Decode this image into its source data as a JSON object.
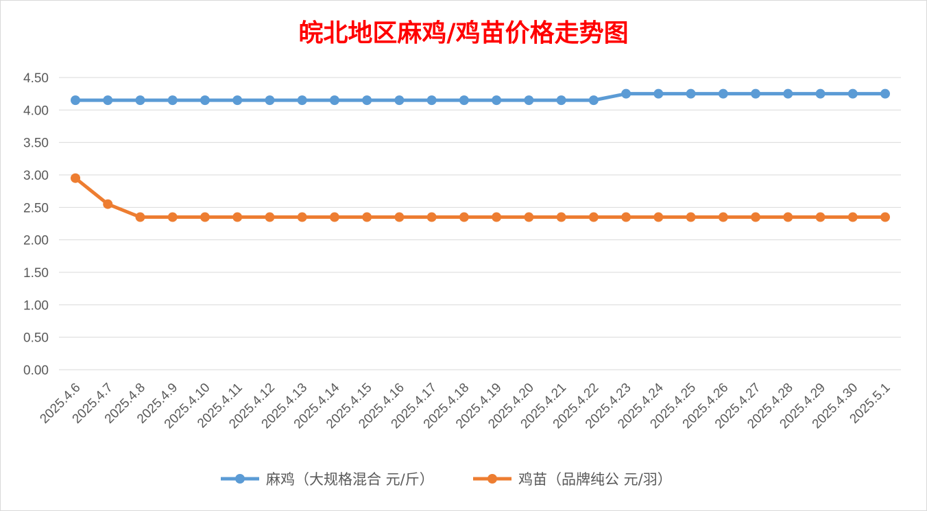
{
  "chart_data": {
    "type": "line",
    "title": "皖北地区麻鸡/鸡苗价格走势图",
    "title_color": "#ff0000",
    "x": [
      "2025.4.6",
      "2025.4.7",
      "2025.4.8",
      "2025.4.9",
      "2025.4.10",
      "2025.4.11",
      "2025.4.12",
      "2025.4.13",
      "2025.4.14",
      "2025.4.15",
      "2025.4.16",
      "2025.4.17",
      "2025.4.18",
      "2025.4.19",
      "2025.4.20",
      "2025.4.21",
      "2025.4.22",
      "2025.4.23",
      "2025.4.24",
      "2025.4.25",
      "2025.4.26",
      "2025.4.27",
      "2025.4.28",
      "2025.4.29",
      "2025.4.30",
      "2025.5.1"
    ],
    "series": [
      {
        "name": "麻鸡（大规格混合 元/斤）",
        "color": "#5b9bd5",
        "values": [
          4.15,
          4.15,
          4.15,
          4.15,
          4.15,
          4.15,
          4.15,
          4.15,
          4.15,
          4.15,
          4.15,
          4.15,
          4.15,
          4.15,
          4.15,
          4.15,
          4.15,
          4.25,
          4.25,
          4.25,
          4.25,
          4.25,
          4.25,
          4.25,
          4.25,
          4.25
        ]
      },
      {
        "name": "鸡苗（品牌纯公 元/羽）",
        "color": "#ed7d31",
        "values": [
          2.95,
          2.55,
          2.35,
          2.35,
          2.35,
          2.35,
          2.35,
          2.35,
          2.35,
          2.35,
          2.35,
          2.35,
          2.35,
          2.35,
          2.35,
          2.35,
          2.35,
          2.35,
          2.35,
          2.35,
          2.35,
          2.35,
          2.35,
          2.35,
          2.35,
          2.35
        ]
      }
    ],
    "ylim": [
      0,
      4.5
    ],
    "yticks": [
      "0.00",
      "0.50",
      "1.00",
      "1.50",
      "2.00",
      "2.50",
      "3.00",
      "3.50",
      "4.00",
      "4.50"
    ],
    "grid": true,
    "legend_position": "bottom"
  }
}
